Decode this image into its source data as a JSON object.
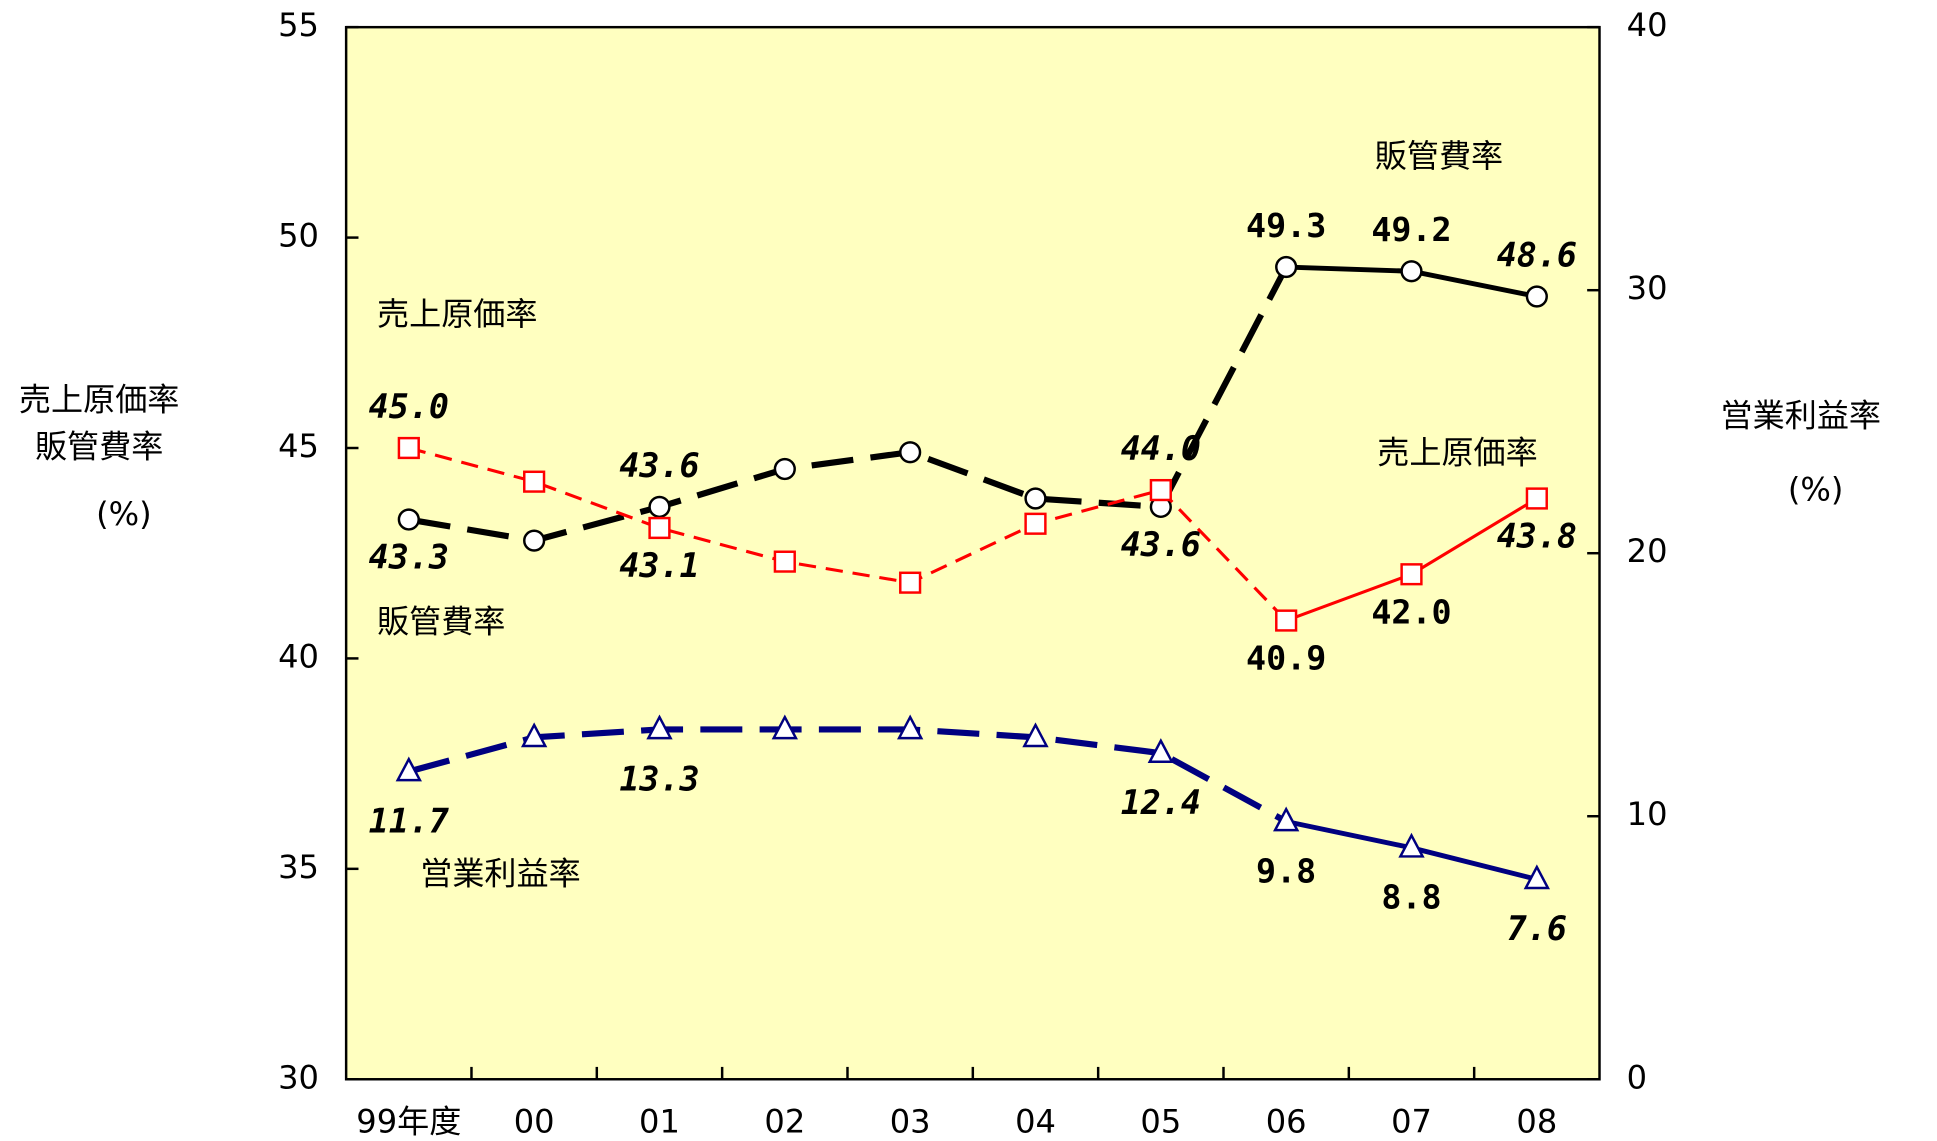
{
  "chart_data": {
    "type": "line",
    "categories": [
      "99年度",
      "00",
      "01",
      "02",
      "03",
      "04",
      "05",
      "06",
      "07",
      "08"
    ],
    "ylim": [
      30,
      55
    ],
    "yticks": [
      30,
      35,
      40,
      45,
      50,
      55
    ],
    "y2lim": [
      0,
      40
    ],
    "y2ticks": [
      0,
      10,
      20,
      30,
      40
    ],
    "y_label": [
      "売上原価率",
      "販管費率",
      "(%)"
    ],
    "y2_label": [
      "営業利益率",
      "(%)"
    ],
    "annotations": [
      "販管費率",
      "売上原価率",
      "売上原価率",
      "販管費率",
      "営業利益率"
    ],
    "series": [
      {
        "name": "販管費率",
        "color": "#000000",
        "marker": "circle",
        "solid_from": "06",
        "values": [
          43.3,
          42.8,
          43.6,
          44.5,
          44.9,
          43.8,
          43.6,
          49.3,
          49.2,
          48.6
        ],
        "value_labels": [
          "43.3",
          null,
          "43.6",
          null,
          null,
          null,
          "43.6",
          "49.3",
          "49.2",
          "48.6"
        ]
      },
      {
        "name": "売上原価率",
        "color": "#ff0000",
        "marker": "square",
        "solid_from": "06",
        "values": [
          45.0,
          44.2,
          43.1,
          42.3,
          41.8,
          43.2,
          44.0,
          40.9,
          42.0,
          43.8
        ],
        "value_labels": [
          "45.0",
          null,
          "43.1",
          null,
          null,
          null,
          "44.0",
          "40.9",
          "42.0",
          "43.8"
        ]
      },
      {
        "name": "営業利益率",
        "color": "#000080",
        "marker": "triangle",
        "solid_from": "06",
        "axis": "y2",
        "values": [
          11.7,
          13.0,
          13.3,
          13.3,
          13.3,
          13.0,
          12.4,
          9.8,
          8.8,
          7.6
        ],
        "value_labels": [
          "11.7",
          null,
          "13.3",
          null,
          null,
          null,
          "12.4",
          "9.8",
          "8.8",
          "7.6"
        ]
      }
    ]
  }
}
